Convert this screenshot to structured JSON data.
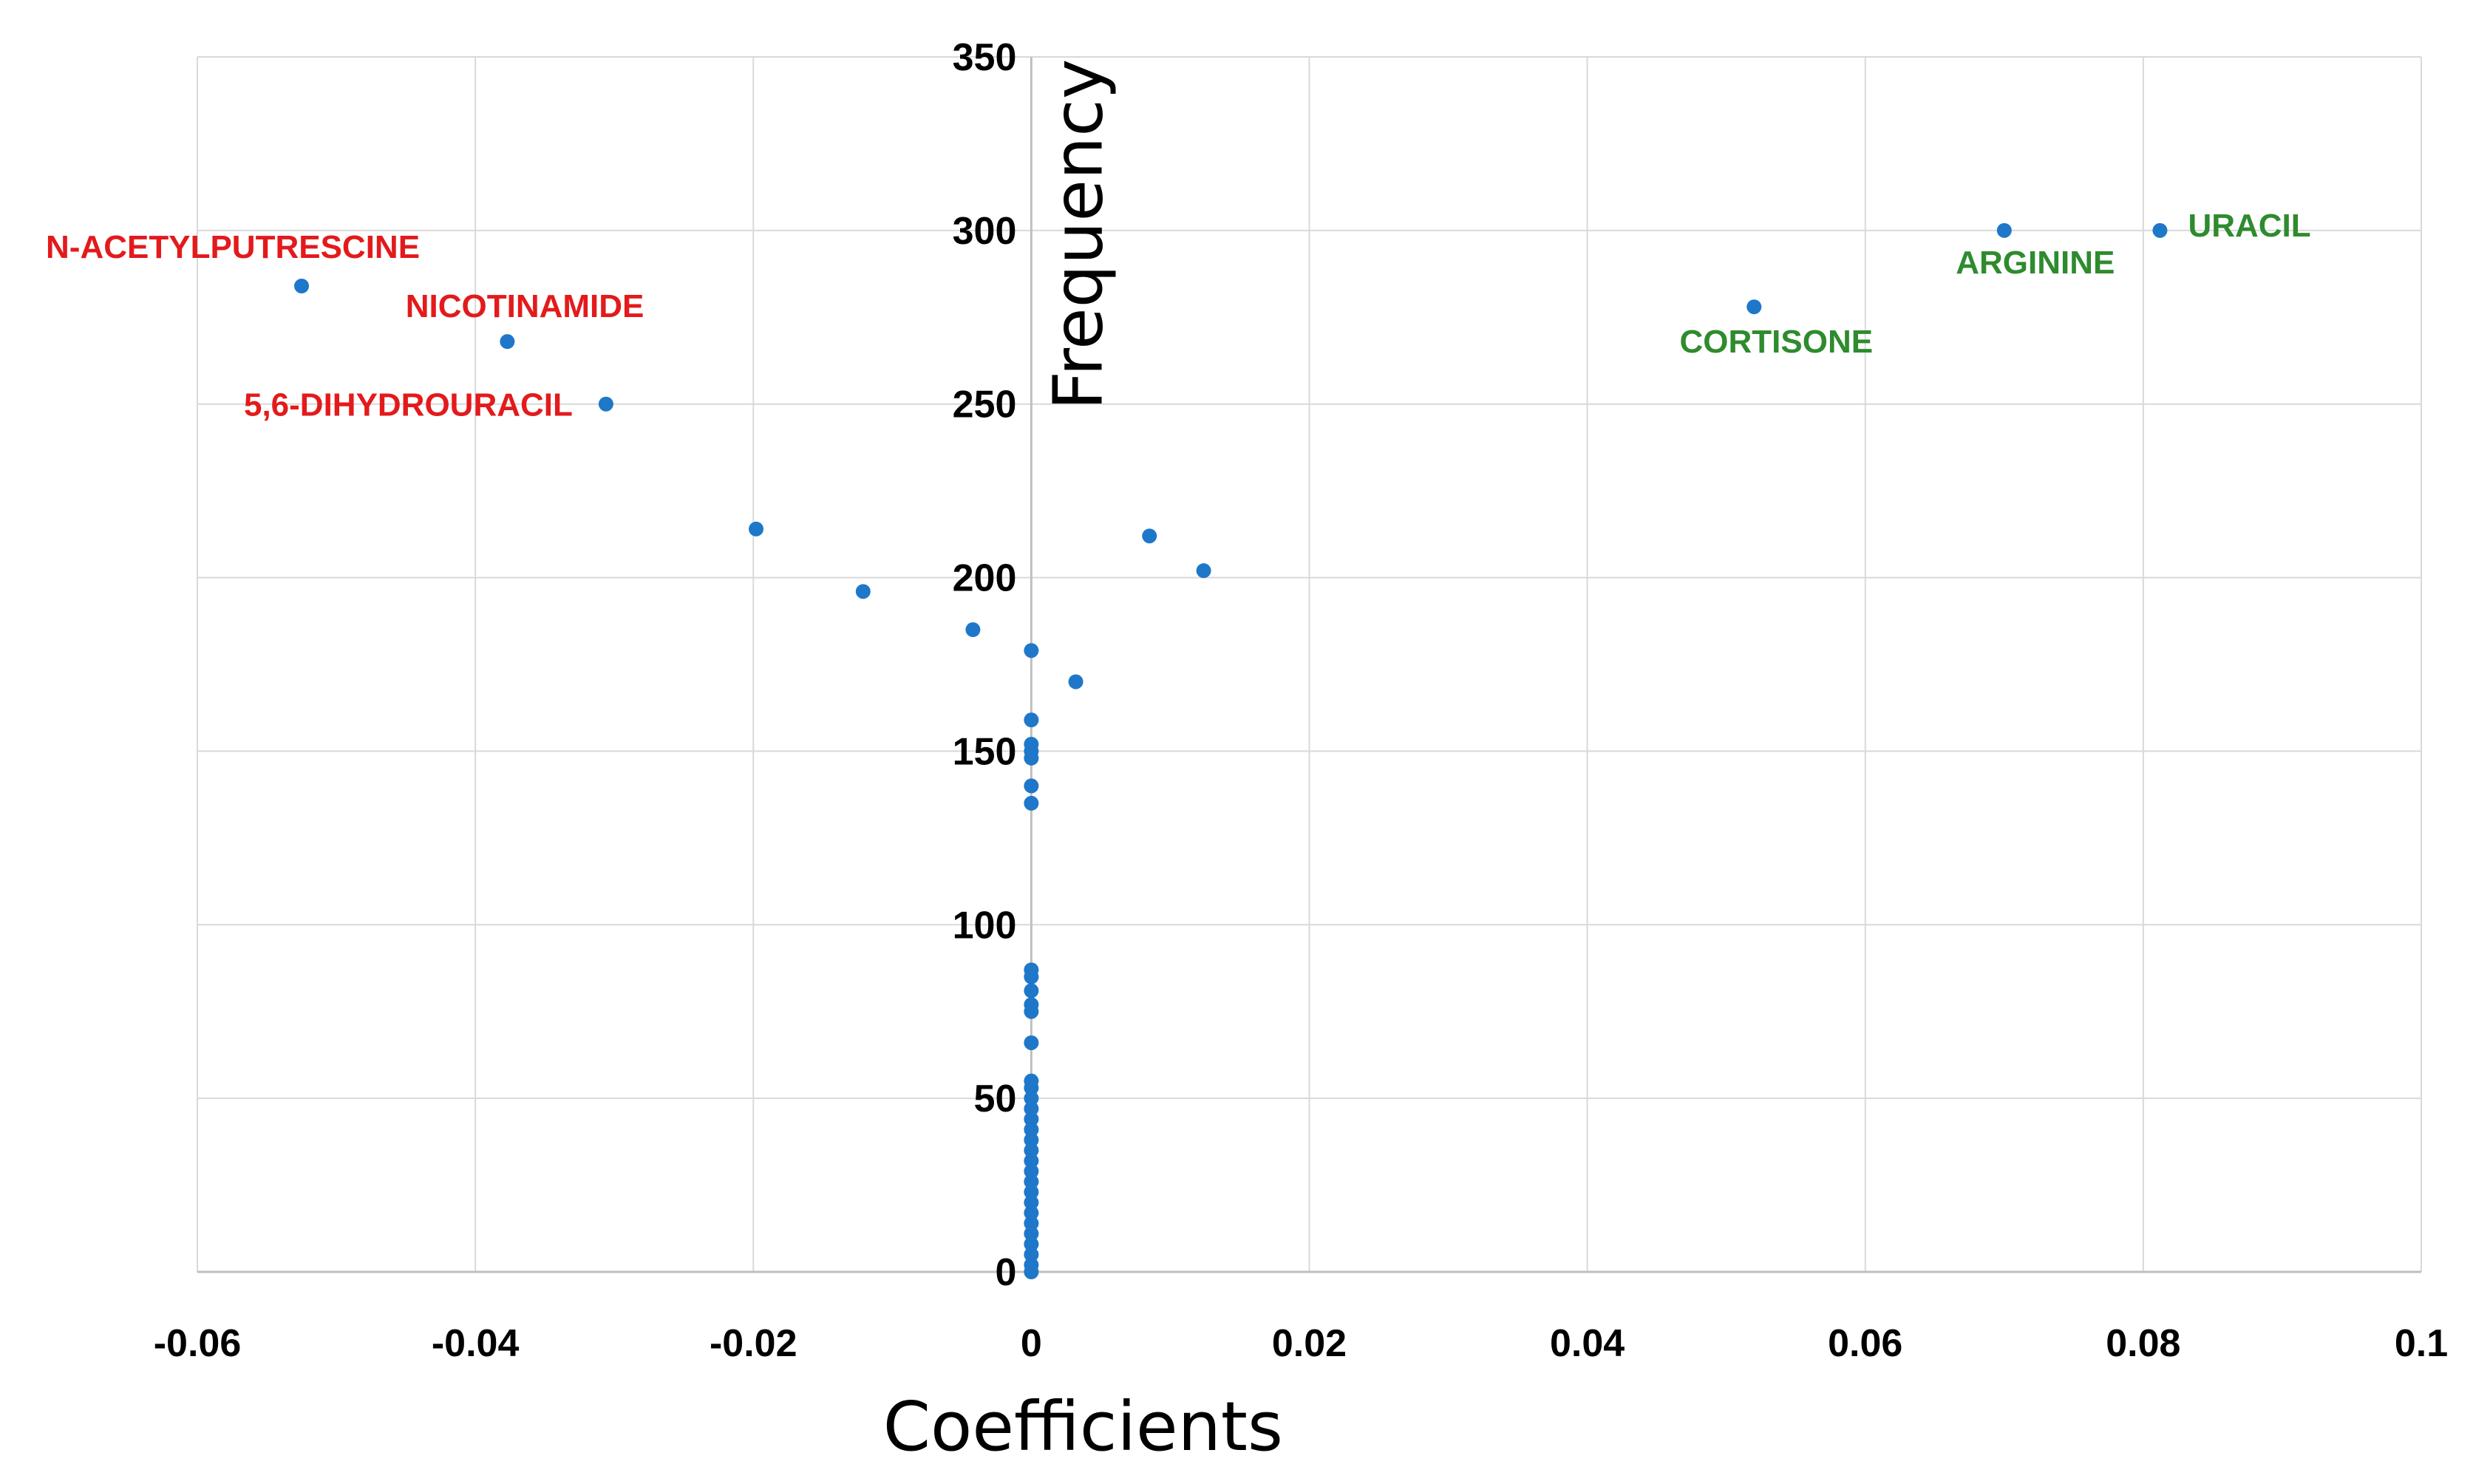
{
  "chart_data": {
    "type": "scatter",
    "title": "",
    "xlabel": "Coefficients",
    "ylabel": "Frequency",
    "xlim": [
      -0.06,
      0.1
    ],
    "ylim": [
      0,
      350
    ],
    "grid": true,
    "x_ticks": [
      "-0.06",
      "-0.04",
      "-0.02",
      "0",
      "0.02",
      "0.04",
      "0.06",
      "0.08",
      "0.1"
    ],
    "y_ticks": [
      "0",
      "50",
      "100",
      "150",
      "200",
      "250",
      "300",
      "350"
    ],
    "marker_color": "#1f77c9",
    "negative_label_color": "#e31a1c",
    "positive_label_color": "#2e8b2e",
    "points": [
      {
        "x": -0.0525,
        "y": 284,
        "label": "N-ACETYLPUTRESCINE",
        "group": "negative"
      },
      {
        "x": -0.0377,
        "y": 268,
        "label": "NICOTINAMIDE",
        "group": "negative"
      },
      {
        "x": -0.0306,
        "y": 250,
        "label": "5,6-DIHYDROURACIL",
        "group": "negative"
      },
      {
        "x": -0.0198,
        "y": 214
      },
      {
        "x": -0.0121,
        "y": 196
      },
      {
        "x": -0.0042,
        "y": 185
      },
      {
        "x": 0.0,
        "y": 179
      },
      {
        "x": 0.0032,
        "y": 170
      },
      {
        "x": 0.0085,
        "y": 212
      },
      {
        "x": 0.0124,
        "y": 202
      },
      {
        "x": 0.052,
        "y": 278,
        "label": "CORTISONE",
        "group": "positive"
      },
      {
        "x": 0.07,
        "y": 300,
        "label": "ARGININE",
        "group": "positive"
      },
      {
        "x": 0.0812,
        "y": 300,
        "label": "URACIL",
        "group": "positive"
      },
      {
        "x": 0.0,
        "y": 159
      },
      {
        "x": 0.0,
        "y": 152
      },
      {
        "x": 0.0,
        "y": 150
      },
      {
        "x": 0.0,
        "y": 148
      },
      {
        "x": 0.0,
        "y": 140
      },
      {
        "x": 0.0,
        "y": 135
      },
      {
        "x": 0.0,
        "y": 87
      },
      {
        "x": 0.0,
        "y": 85
      },
      {
        "x": 0.0,
        "y": 81
      },
      {
        "x": 0.0,
        "y": 77
      },
      {
        "x": 0.0,
        "y": 75
      },
      {
        "x": 0.0,
        "y": 66
      },
      {
        "x": 0.0,
        "y": 55
      },
      {
        "x": 0.0,
        "y": 53
      },
      {
        "x": 0.0,
        "y": 50
      },
      {
        "x": 0.0,
        "y": 47
      },
      {
        "x": 0.0,
        "y": 44
      },
      {
        "x": 0.0,
        "y": 41
      },
      {
        "x": 0.0,
        "y": 38
      },
      {
        "x": 0.0,
        "y": 35
      },
      {
        "x": 0.0,
        "y": 32
      },
      {
        "x": 0.0,
        "y": 29
      },
      {
        "x": 0.0,
        "y": 26
      },
      {
        "x": 0.0,
        "y": 23
      },
      {
        "x": 0.0,
        "y": 20
      },
      {
        "x": 0.0,
        "y": 17
      },
      {
        "x": 0.0,
        "y": 14
      },
      {
        "x": 0.0,
        "y": 11
      },
      {
        "x": 0.0,
        "y": 8
      },
      {
        "x": 0.0,
        "y": 5
      },
      {
        "x": 0.0,
        "y": 2
      },
      {
        "x": 0.0,
        "y": 0
      }
    ]
  }
}
